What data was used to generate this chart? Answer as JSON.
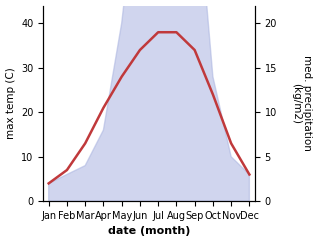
{
  "months": [
    "Jan",
    "Feb",
    "Mar",
    "Apr",
    "May",
    "Jun",
    "Jul",
    "Aug",
    "Sep",
    "Oct",
    "Nov",
    "Dec"
  ],
  "temperature": [
    4,
    7,
    13,
    21,
    28,
    34,
    38,
    38,
    34,
    24,
    13,
    6
  ],
  "precipitation": [
    2,
    3,
    4,
    8,
    20,
    38,
    43,
    42,
    38,
    14,
    5,
    3
  ],
  "temp_color": "#c0393b",
  "precip_color": "#aab4e0",
  "precip_fill_alpha": 0.55,
  "ylabel_left": "max temp (C)",
  "ylabel_right": "med. precipitation\n(kg/m2)",
  "xlabel": "date (month)",
  "ylim_left": [
    0,
    44
  ],
  "ylim_right": [
    0,
    22
  ],
  "yticks_left": [
    0,
    10,
    20,
    30,
    40
  ],
  "yticks_right": [
    0,
    5,
    10,
    15,
    20
  ],
  "bg_color": "#ffffff",
  "line_width": 1.8,
  "label_fontsize": 7.5,
  "tick_fontsize": 7.0,
  "xlabel_fontsize": 8.0
}
